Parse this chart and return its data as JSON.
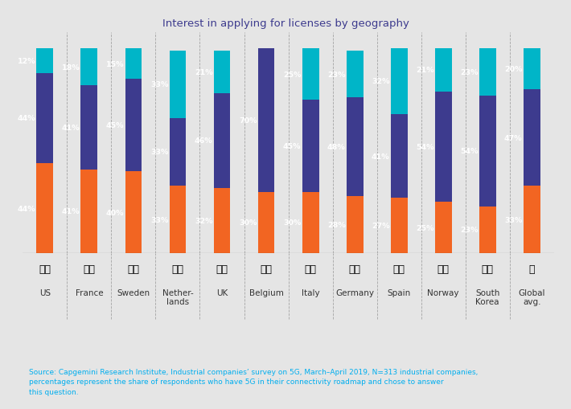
{
  "title": "Interest in applying for licenses by geography",
  "categories": [
    "US",
    "France",
    "Sweden",
    "Nether-\nlands",
    "UK",
    "Belgium",
    "Italy",
    "Germany",
    "Spain",
    "Norway",
    "South\nKorea",
    "Global\navg."
  ],
  "cat_labels": [
    "US",
    "France",
    "Sweden",
    "Nether-\nlands",
    "UK",
    "Belgium",
    "Italy",
    "Germany",
    "Spain",
    "Norway",
    "South\nKorea",
    "Global\navg."
  ],
  "yes": [
    44,
    41,
    40,
    33,
    32,
    30,
    30,
    28,
    27,
    25,
    23,
    33
  ],
  "no": [
    44,
    41,
    45,
    33,
    46,
    70,
    45,
    48,
    41,
    54,
    54,
    47
  ],
  "cant_say": [
    12,
    18,
    15,
    33,
    21,
    0,
    25,
    23,
    32,
    21,
    23,
    20
  ],
  "color_yes": "#F26522",
  "color_no": "#3D3B8E",
  "color_cant": "#00B5C8",
  "background": "#E5E5E5",
  "title_color": "#3D3B8E",
  "source_text": "Source: Capgemini Research Institute, Industrial companies’ survey on 5G, March–April 2019, N=313 industrial companies,\npercentages represent the share of respondents who have 5G in their connectivity roadmap and chose to answer\nthis question.",
  "source_color": "#00AEEF",
  "label_fontsize": 6.8,
  "bar_width": 0.38
}
